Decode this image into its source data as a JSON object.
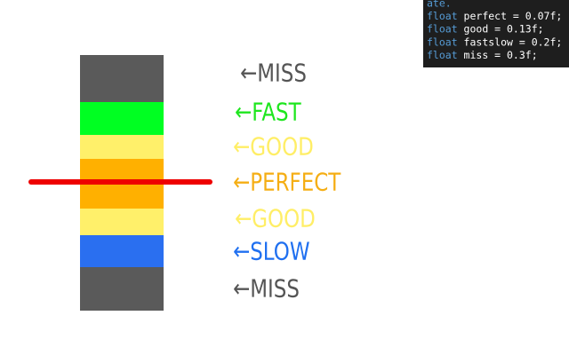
{
  "judgements": [
    {
      "text": "←MISS",
      "color": "#555555"
    },
    {
      "text": "←FAST",
      "color": "#1ee61e"
    },
    {
      "text": "←GOOD",
      "color": "#ffee66"
    },
    {
      "text": "←PERFECT",
      "color": "#f5ae14"
    },
    {
      "text": "←GOOD",
      "color": "#ffee66"
    },
    {
      "text": "←SLOW",
      "color": "#2070f0"
    },
    {
      "text": "←MISS",
      "color": "#555555"
    }
  ],
  "code": {
    "partial_line": "ate.",
    "lines": [
      {
        "keyword": "float",
        "rest": " perfect = 0.07f;"
      },
      {
        "keyword": "float",
        "rest": " good = 0.13f;"
      },
      {
        "keyword": "float",
        "rest": " fastslow = 0.2f;"
      },
      {
        "keyword": "float",
        "rest": " miss = 0.3f;"
      }
    ]
  }
}
